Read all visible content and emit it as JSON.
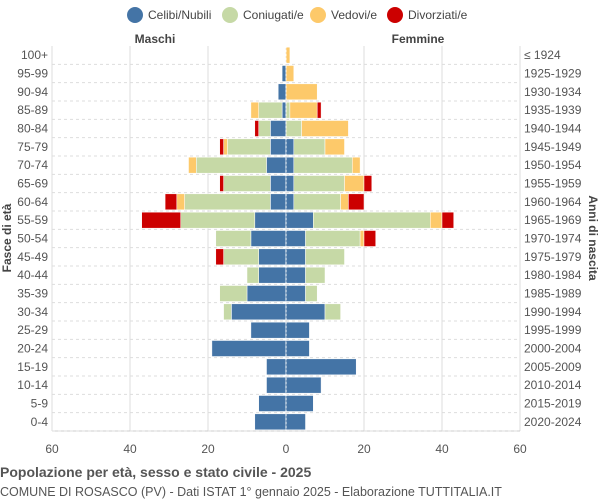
{
  "chart_data": {
    "type": "bar",
    "orientation": "horizontal-pyramid",
    "legend": {
      "placement": "top",
      "entries": [
        "Celibi/Nubili",
        "Coniugati/e",
        "Vedovi/e",
        "Divorziati/e"
      ]
    },
    "colors": {
      "Celibi/Nubili": "#4474a6",
      "Coniugati/e": "#c6d9a6",
      "Vedovi/e": "#fdc96a",
      "Divorziati/e": "#cc0000"
    },
    "left_title": "Maschi",
    "right_title": "Femmine",
    "ylabel_left": "Fasce di età",
    "ylabel_right": "Anni di nascita",
    "xlim": [
      -60,
      60
    ],
    "xticks": [
      "60",
      "40",
      "20",
      "0",
      "20",
      "40",
      "60"
    ],
    "grid": true,
    "age_groups": [
      "100+",
      "95-99",
      "90-94",
      "85-89",
      "80-84",
      "75-79",
      "70-74",
      "65-69",
      "60-64",
      "55-59",
      "50-54",
      "45-49",
      "40-44",
      "35-39",
      "30-34",
      "25-29",
      "20-24",
      "15-19",
      "10-14",
      "5-9",
      "0-4"
    ],
    "birth_years": [
      "≤ 1924",
      "1925-1929",
      "1930-1934",
      "1935-1939",
      "1940-1944",
      "1945-1949",
      "1950-1954",
      "1955-1959",
      "1960-1964",
      "1965-1969",
      "1970-1974",
      "1975-1979",
      "1980-1984",
      "1985-1989",
      "1990-1994",
      "1995-1999",
      "2000-2004",
      "2005-2009",
      "2010-2014",
      "2015-2019",
      "2020-2024"
    ],
    "males": {
      "Celibi/Nubili": [
        0,
        1,
        2,
        1,
        4,
        4,
        5,
        4,
        4,
        8,
        9,
        7,
        7,
        10,
        14,
        9,
        19,
        5,
        5,
        7,
        8
      ],
      "Coniugati/e": [
        0,
        0,
        0,
        6,
        3,
        11,
        18,
        12,
        22,
        19,
        9,
        9,
        3,
        7,
        2,
        0,
        0,
        0,
        0,
        0,
        0
      ],
      "Vedovi/e": [
        0,
        0,
        0,
        2,
        0,
        1,
        2,
        0,
        2,
        0,
        0,
        0,
        0,
        0,
        0,
        0,
        0,
        0,
        0,
        0,
        0
      ],
      "Divorziati/e": [
        0,
        0,
        0,
        0,
        1,
        1,
        0,
        1,
        3,
        10,
        0,
        2,
        0,
        0,
        0,
        0,
        0,
        0,
        0,
        0,
        0
      ]
    },
    "females": {
      "Celibi/Nubili": [
        0,
        0,
        0,
        0,
        0,
        2,
        2,
        2,
        2,
        7,
        5,
        5,
        5,
        5,
        10,
        6,
        6,
        18,
        9,
        7,
        5
      ],
      "Coniugati/e": [
        0,
        0,
        0,
        1,
        4,
        8,
        15,
        13,
        12,
        30,
        14,
        10,
        5,
        3,
        4,
        0,
        0,
        0,
        0,
        0,
        0
      ],
      "Vedovi/e": [
        1,
        2,
        8,
        7,
        12,
        5,
        2,
        5,
        2,
        3,
        1,
        0,
        0,
        0,
        0,
        0,
        0,
        0,
        0,
        0,
        0
      ],
      "Divorziati/e": [
        0,
        0,
        0,
        1,
        0,
        0,
        0,
        2,
        4,
        3,
        3,
        0,
        0,
        0,
        0,
        0,
        0,
        0,
        0,
        0,
        0
      ]
    }
  },
  "footer": {
    "title": "Popolazione per età, sesso e stato civile - 2025",
    "subtitle": "COMUNE DI ROSASCO (PV) - Dati ISTAT 1° gennaio 2025 - Elaborazione TUTTITALIA.IT"
  }
}
